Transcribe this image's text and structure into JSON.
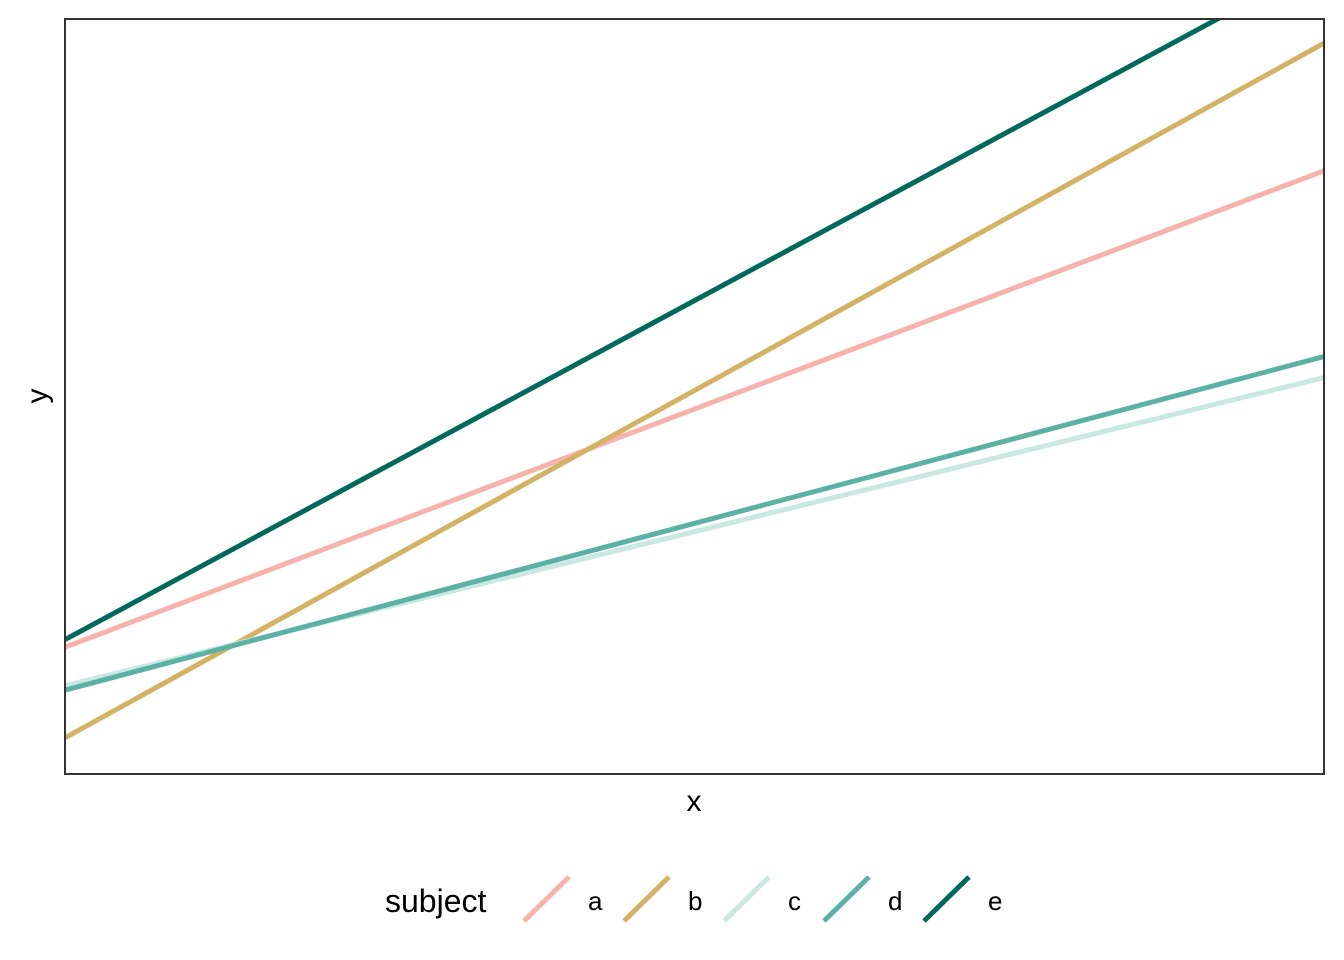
{
  "chart_data": {
    "type": "line",
    "xlabel": "x",
    "ylabel": "y",
    "xlim": [
      0,
      1
    ],
    "ylim": [
      0,
      1
    ],
    "grid": false,
    "legend": {
      "title": "subject",
      "placement": "bottom"
    },
    "series": [
      {
        "name": "a",
        "color": "#F7B2AC",
        "x": [
          0,
          1
        ],
        "y": [
          0.168,
          0.799
        ]
      },
      {
        "name": "b",
        "color": "#D4B265",
        "x": [
          0,
          1
        ],
        "y": [
          0.048,
          0.968
        ]
      },
      {
        "name": "c",
        "color": "#C8E8E1",
        "x": [
          0,
          1
        ],
        "y": [
          0.117,
          0.525
        ]
      },
      {
        "name": "d",
        "color": "#5BB1A6",
        "x": [
          0,
          1
        ],
        "y": [
          0.111,
          0.553
        ]
      },
      {
        "name": "e",
        "color": "#00695C",
        "x": [
          0,
          1
        ],
        "y": [
          0.178,
          1.076
        ]
      }
    ]
  }
}
